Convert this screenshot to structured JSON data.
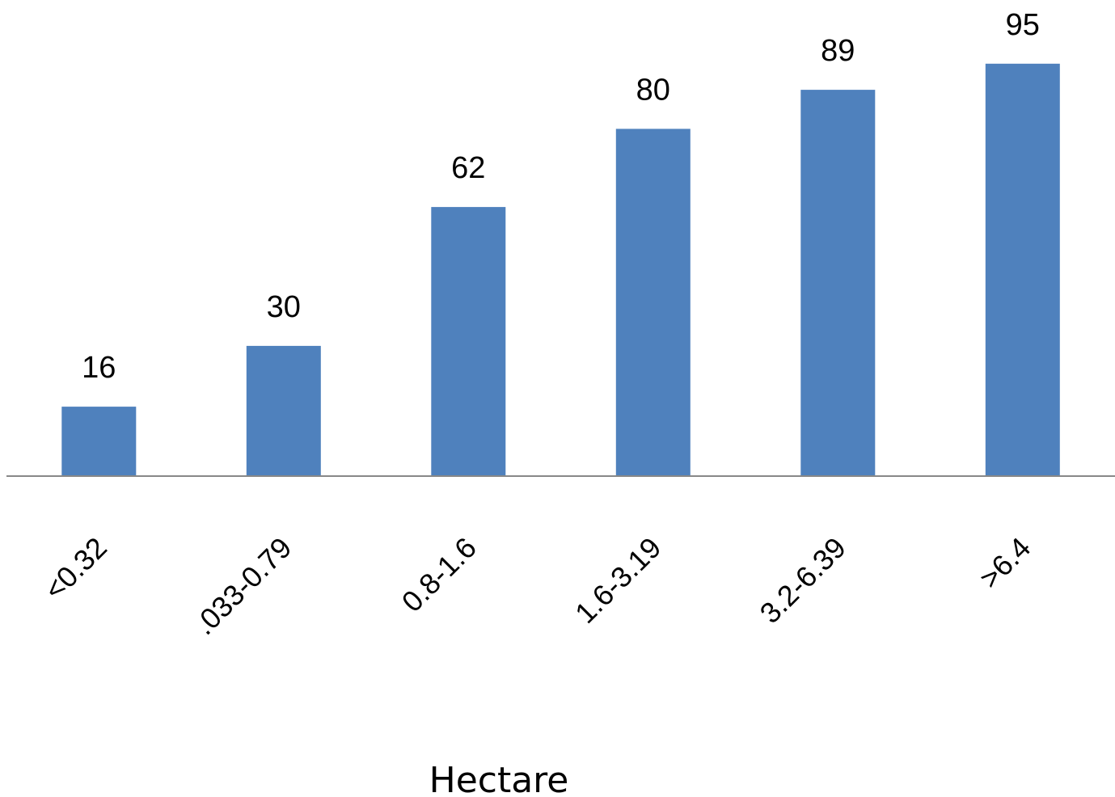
{
  "chart_data": {
    "type": "bar",
    "categories": [
      "<0.32",
      ".033-0.79",
      "0.8-1.6",
      "1.6-3.19",
      "3.2-6.39",
      ">6.4"
    ],
    "values": [
      16,
      30,
      62,
      80,
      89,
      95
    ],
    "xlabel": "Hectare",
    "ylabel": "",
    "ylim": [
      0,
      100
    ],
    "grid": false,
    "data_labels": true,
    "colors": {
      "bar": "#4f81bd",
      "axis": "#888888",
      "text": "#000000"
    }
  }
}
